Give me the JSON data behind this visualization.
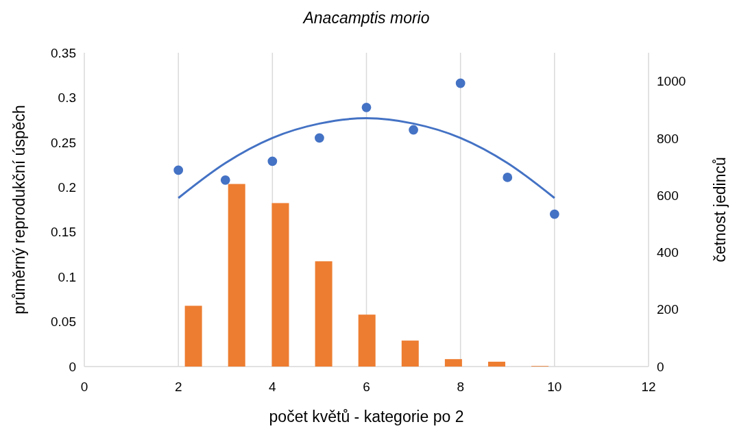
{
  "chart_data": {
    "type": "scatter",
    "title": "Anacamptis morio",
    "xlabel": "počet květů - kategorie po 2",
    "ylabel": "průměrný reprodukční úspěch",
    "y2label": "četnost jedinců",
    "xlim": [
      0,
      12
    ],
    "xticks": [
      0,
      2,
      4,
      6,
      8,
      10,
      12
    ],
    "ylim": [
      0,
      0.35
    ],
    "yticks": [
      0,
      0.05,
      0.1,
      0.15,
      0.2,
      0.25,
      0.3,
      0.35
    ],
    "y2lim": [
      0,
      1100
    ],
    "y2ticks": [
      0,
      200,
      400,
      600,
      800,
      1000
    ],
    "grid": "x",
    "series": [
      {
        "type": "bar",
        "axis": "y2",
        "color": "#ed7d31",
        "x": [
          2.32,
          3.24,
          4.17,
          5.09,
          6.01,
          6.93,
          7.85,
          8.77,
          9.69
        ],
        "values": [
          213,
          640,
          573,
          369,
          182,
          91,
          26,
          17,
          2
        ]
      },
      {
        "marker": "circle",
        "color": "#4472c4",
        "x": [
          2,
          3,
          4,
          5,
          6,
          7,
          8,
          9,
          10
        ],
        "values": [
          0.219,
          0.208,
          0.229,
          0.255,
          0.289,
          0.264,
          0.316,
          0.211,
          0.17
        ]
      },
      {
        "type": "line",
        "color": "#4472c4",
        "x": [
          2,
          3,
          4,
          5,
          6,
          7,
          8,
          9,
          10
        ],
        "values": [
          0.188,
          0.227,
          0.255,
          0.271,
          0.277,
          0.271,
          0.255,
          0.227,
          0.188
        ]
      }
    ]
  }
}
